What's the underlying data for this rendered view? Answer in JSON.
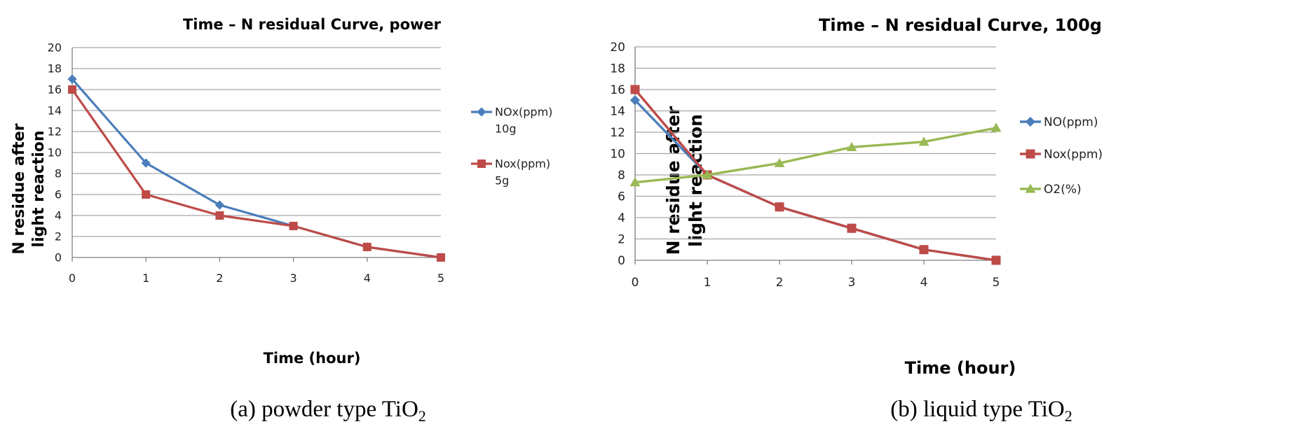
{
  "chart_data": [
    {
      "type": "line",
      "title": "Time – N residual Curve, power",
      "xlabel": "Time (hour)",
      "ylabel_lines": [
        "N residue after",
        "light reaction"
      ],
      "caption": "(a) powder type TiO",
      "caption_sub": "2",
      "categories": [
        "0",
        "1",
        "2",
        "3",
        "4",
        "5"
      ],
      "y_ticks": [
        "0",
        "2",
        "4",
        "6",
        "8",
        "10",
        "12",
        "14",
        "16",
        "18",
        "20"
      ],
      "ylim": [
        0,
        20
      ],
      "legend_position": "right",
      "series": [
        {
          "name_lines": [
            "NOx(ppm)",
            "10g"
          ],
          "color": "#4a7ebb",
          "marker": "diamond",
          "values": [
            17,
            9,
            5,
            3,
            1,
            0
          ]
        },
        {
          "name_lines": [
            "Nox(ppm)",
            "5g"
          ],
          "color": "#be4b48",
          "marker": "square",
          "values": [
            16,
            6,
            4,
            3,
            1,
            0
          ]
        }
      ]
    },
    {
      "type": "line",
      "title": "Time – N residual Curve, 100g",
      "xlabel": "Time (hour)",
      "ylabel_lines": [
        "N residue after",
        "light reaction"
      ],
      "caption": "(b) liquid type TiO",
      "caption_sub": "2",
      "categories": [
        "0",
        "1",
        "2",
        "3",
        "4",
        "5"
      ],
      "y_ticks": [
        "0",
        "2",
        "4",
        "6",
        "8",
        "10",
        "12",
        "14",
        "16",
        "18",
        "20"
      ],
      "ylim": [
        0,
        20
      ],
      "legend_position": "right",
      "series": [
        {
          "name_lines": [
            "NO(ppm)"
          ],
          "color": "#4a7ebb",
          "marker": "diamond",
          "values": [
            15,
            8,
            5,
            3,
            1,
            0
          ]
        },
        {
          "name_lines": [
            "Nox(ppm)"
          ],
          "color": "#be4b48",
          "marker": "square",
          "values": [
            16,
            8,
            5,
            3,
            1,
            0
          ]
        },
        {
          "name_lines": [
            "O2(%)"
          ],
          "color": "#98b954",
          "marker": "triangle",
          "values": [
            7.3,
            8.0,
            9.1,
            10.6,
            11.1,
            12.4
          ]
        }
      ]
    }
  ]
}
